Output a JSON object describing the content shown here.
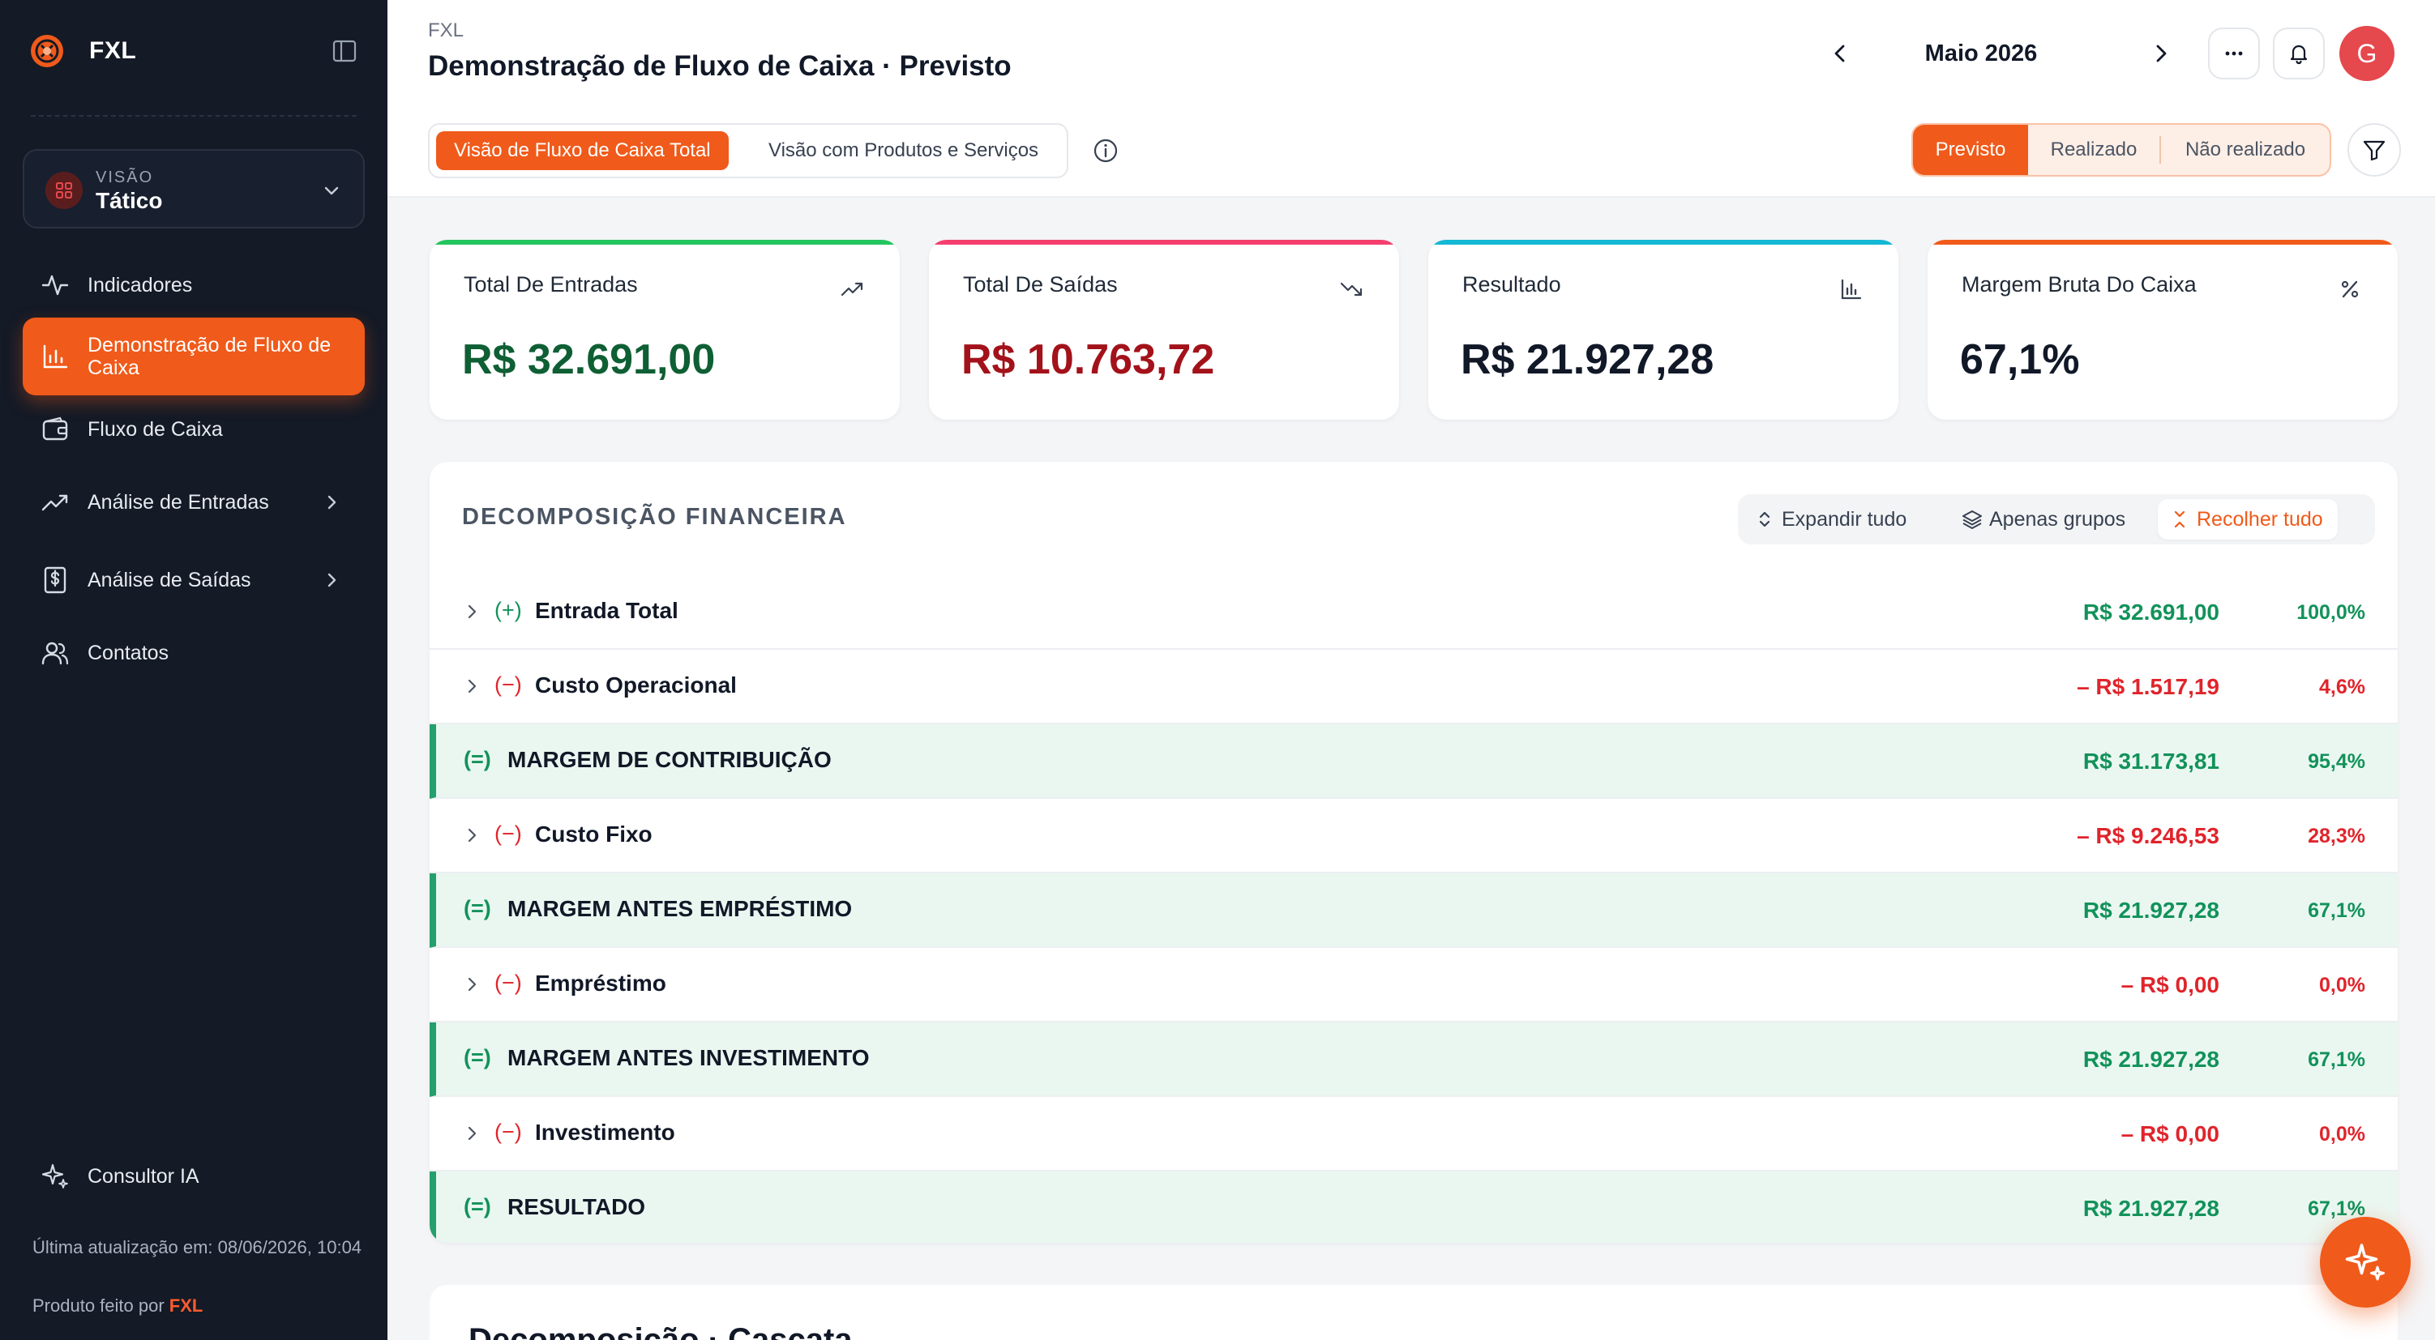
{
  "brand": {
    "name": "FXL"
  },
  "view_selector": {
    "label": "VISÃO",
    "value": "Tático"
  },
  "nav": {
    "items": [
      {
        "label": "Indicadores",
        "icon": "activity-icon"
      },
      {
        "label": "Demonstração de Fluxo de Caixa",
        "icon": "bar-chart-icon",
        "active": true
      },
      {
        "label": "Fluxo de Caixa",
        "icon": "wallet-icon"
      },
      {
        "label": "Análise de Entradas",
        "icon": "trending-up-icon"
      },
      {
        "label": "Análise de Saídas",
        "icon": "dollar-receipt-icon"
      },
      {
        "label": "Contatos",
        "icon": "users-icon"
      }
    ],
    "ai_consultant": "Consultor IA"
  },
  "footer": {
    "last_update": "Última atualização em: 08/06/2026, 10:04",
    "made_by_prefix": "Produto feito por",
    "made_by_brand": "FXL"
  },
  "header": {
    "breadcrumb": "FXL",
    "title": "Demonstração de Fluxo de Caixa · Previsto",
    "month": "Maio 2026",
    "avatar_initial": "G"
  },
  "view_tabs": [
    "Visão de Fluxo de Caixa Total",
    "Visão com Produtos e Serviços"
  ],
  "status_tabs": [
    "Previsto",
    "Realizado",
    "Não realizado"
  ],
  "kpis": [
    {
      "label": "Total De Entradas",
      "value": "R$ 32.691,00",
      "icon": "trending-up-icon",
      "accent": "#22c55e",
      "value_color": "#0f5f34"
    },
    {
      "label": "Total De Saídas",
      "value": "R$ 10.763,72",
      "icon": "trending-down-icon",
      "accent": "#f43f6e",
      "value_color": "#a3121a"
    },
    {
      "label": "Resultado",
      "value": "R$ 21.927,28",
      "icon": "bar-chart-icon",
      "accent": "#14b8d4",
      "value_color": "#111827"
    },
    {
      "label": "Margem Bruta Do Caixa",
      "value": "67,1%",
      "icon": "percent-icon",
      "accent": "#f05a1a",
      "value_color": "#111827"
    }
  ],
  "breakdown": {
    "title": "DECOMPOSIÇÃO FINANCEIRA",
    "actions": [
      "Expandir tudo",
      "Apenas grupos",
      "Recolher tudo"
    ],
    "rows": [
      {
        "sign": "(+)",
        "label": "Entrada Total",
        "amount": "R$ 32.691,00",
        "pct": "100,0%",
        "type": "item",
        "tone": "pos"
      },
      {
        "sign": "(−)",
        "label": "Custo Operacional",
        "amount": "– R$ 1.517,19",
        "pct": "4,6%",
        "type": "item",
        "tone": "neg"
      },
      {
        "sign": "(=)",
        "label": "MARGEM DE CONTRIBUIÇÃO",
        "amount": "R$ 31.173,81",
        "pct": "95,4%",
        "type": "total",
        "tone": "pos"
      },
      {
        "sign": "(−)",
        "label": "Custo Fixo",
        "amount": "– R$ 9.246,53",
        "pct": "28,3%",
        "type": "item",
        "tone": "neg"
      },
      {
        "sign": "(=)",
        "label": "MARGEM ANTES EMPRÉSTIMO",
        "amount": "R$ 21.927,28",
        "pct": "67,1%",
        "type": "total",
        "tone": "pos"
      },
      {
        "sign": "(−)",
        "label": "Empréstimo",
        "amount": "– R$ 0,00",
        "pct": "0,0%",
        "type": "item",
        "tone": "neg"
      },
      {
        "sign": "(=)",
        "label": "MARGEM ANTES INVESTIMENTO",
        "amount": "R$ 21.927,28",
        "pct": "67,1%",
        "type": "total",
        "tone": "pos"
      },
      {
        "sign": "(−)",
        "label": "Investimento",
        "amount": "– R$ 0,00",
        "pct": "0,0%",
        "type": "item",
        "tone": "neg"
      },
      {
        "sign": "(=)",
        "label": "RESULTADO",
        "amount": "R$ 21.927,28",
        "pct": "67,1%",
        "type": "total",
        "tone": "pos"
      }
    ]
  },
  "next_section": {
    "title": "Decomposição · Cascata"
  },
  "colors": {
    "accent": "#f05a1a",
    "sidebar": "#141a26",
    "positive": "#12925a",
    "negative": "#e0242b"
  }
}
